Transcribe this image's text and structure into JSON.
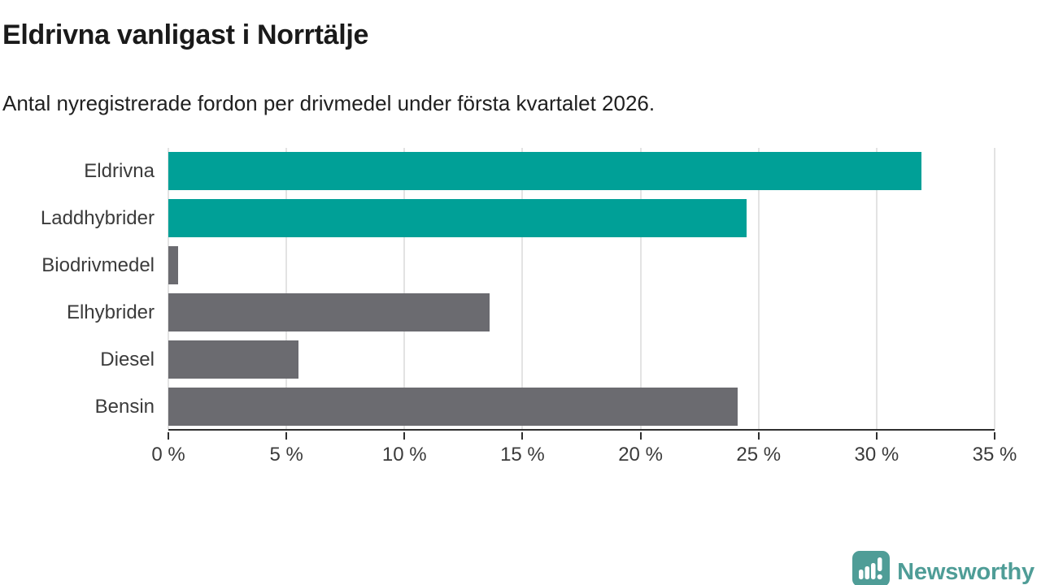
{
  "header": {
    "title": "Eldrivna vanligast i Norrtälje",
    "subtitle": "Antal nyregistrerade fordon per drivmedel under första kvartalet 2026."
  },
  "chart_data": {
    "type": "bar",
    "orientation": "horizontal",
    "title": "Eldrivna vanligast i Norrtälje",
    "subtitle": "Antal nyregistrerade fordon per drivmedel under första kvartalet 2026.",
    "categories": [
      "Eldrivna",
      "Laddhybrider",
      "Biodrivmedel",
      "Elhybrider",
      "Diesel",
      "Bensin"
    ],
    "values": [
      31.9,
      24.5,
      0.4,
      13.6,
      5.5,
      24.1
    ],
    "bar_colors": [
      "#00a097",
      "#00a097",
      "#6b6b70",
      "#6b6b70",
      "#6b6b70",
      "#6b6b70"
    ],
    "xlabel": "",
    "ylabel": "",
    "xlim": [
      0,
      35
    ],
    "x_ticks": [
      0,
      5,
      10,
      15,
      20,
      25,
      30,
      35
    ],
    "x_tick_labels": [
      "0 %",
      "5 %",
      "10 %",
      "15 %",
      "20 %",
      "25 %",
      "30 %",
      "35 %"
    ],
    "grid": "vertical-on",
    "legend": "none"
  },
  "footer": {
    "brand_label": "Newsworthy",
    "brand_color": "#4f9d97",
    "logo_icon": "speech-bubble-bar-chart-exclamation"
  },
  "colors": {
    "accent_teal": "#00a097",
    "bar_gray": "#6b6b70",
    "axis": "#2f2f2f",
    "gridline": "#e3e3e3",
    "title_text": "#1a1a1a",
    "label_text": "#3b3b3b"
  }
}
